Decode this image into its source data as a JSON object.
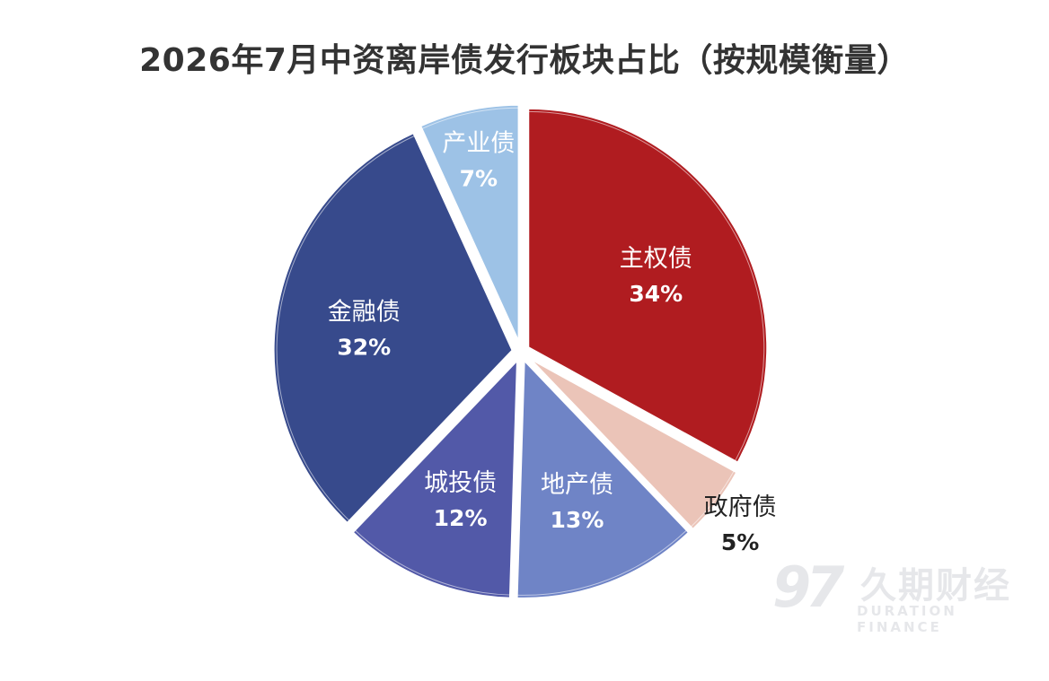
{
  "chart_data": {
    "type": "pie",
    "title": "2026年7月中资离岸债发行板块占比（按规模衡量）",
    "slices": [
      {
        "label": "主权债",
        "value": 34,
        "display": "34%",
        "color": "#b01c20",
        "text_color": "#ffffff"
      },
      {
        "label": "政府债",
        "value": 5,
        "display": "5%",
        "color": "#ebc4b8",
        "text_color": "#222222"
      },
      {
        "label": "地产债",
        "value": 13,
        "display": "13%",
        "color": "#6f84c6",
        "text_color": "#ffffff"
      },
      {
        "label": "城投债",
        "value": 12,
        "display": "12%",
        "color": "#5259a8",
        "text_color": "#ffffff"
      },
      {
        "label": "金融债",
        "value": 32,
        "display": "32%",
        "color": "#374a8c",
        "text_color": "#ffffff"
      },
      {
        "label": "产业债",
        "value": 7,
        "display": "7%",
        "color": "#9dc2e6",
        "text_color": "#ffffff"
      }
    ],
    "legend": "none"
  },
  "watermark": {
    "logo": "97",
    "name_cn": "久期财经",
    "name_en": "DURATION FINANCE"
  }
}
